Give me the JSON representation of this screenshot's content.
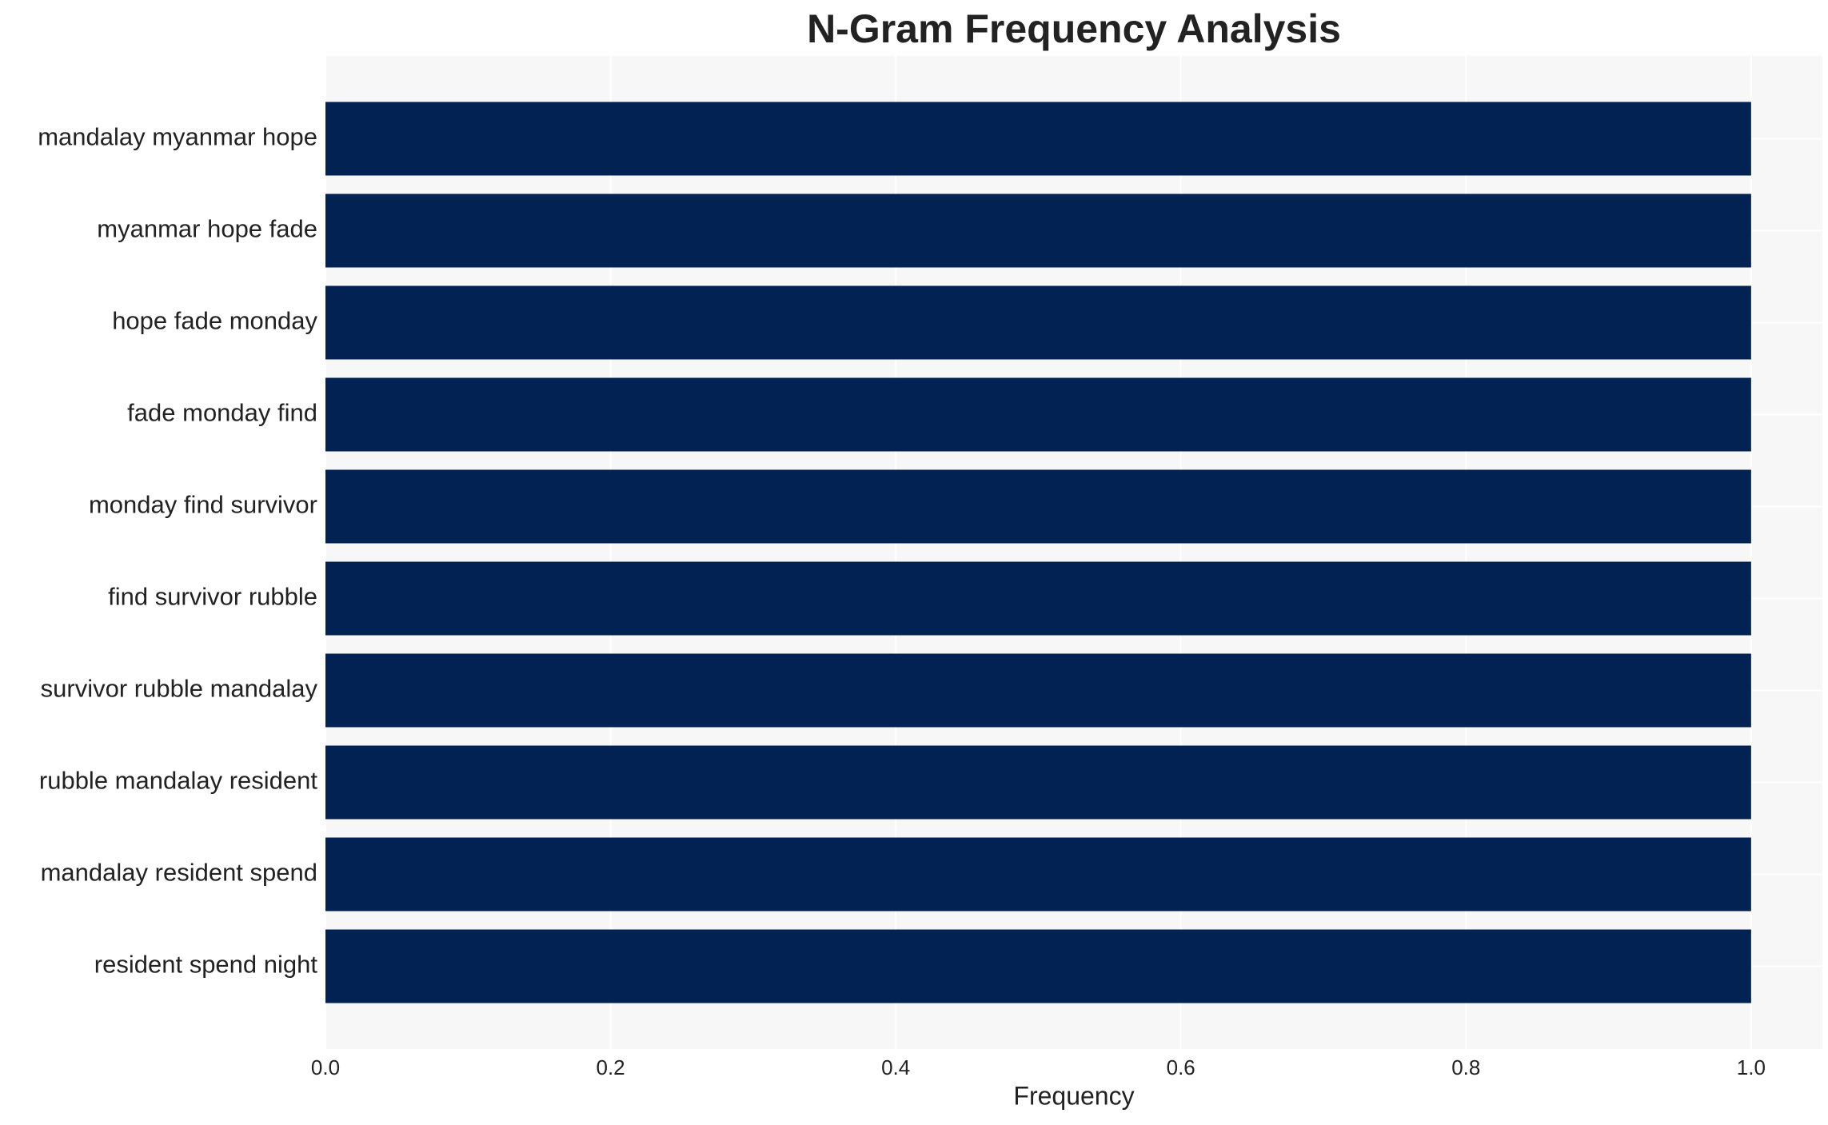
{
  "chart_data": {
    "type": "barh",
    "title": "N-Gram Frequency Analysis",
    "xlabel": "Frequency",
    "categories": [
      "mandalay myanmar hope",
      "myanmar hope fade",
      "hope fade monday",
      "fade monday find",
      "monday find survivor",
      "find survivor rubble",
      "survivor rubble mandalay",
      "rubble mandalay resident",
      "mandalay resident spend",
      "resident spend night"
    ],
    "values": [
      1,
      1,
      1,
      1,
      1,
      1,
      1,
      1,
      1,
      1
    ],
    "color": "#012252",
    "xlim": [
      0,
      1.05
    ],
    "xticks": [
      {
        "value": 0,
        "label": "0.0"
      },
      0.2,
      0.4,
      0.6,
      0.8,
      {
        "value": 1,
        "label": "1.0"
      }
    ],
    "grid": true
  }
}
